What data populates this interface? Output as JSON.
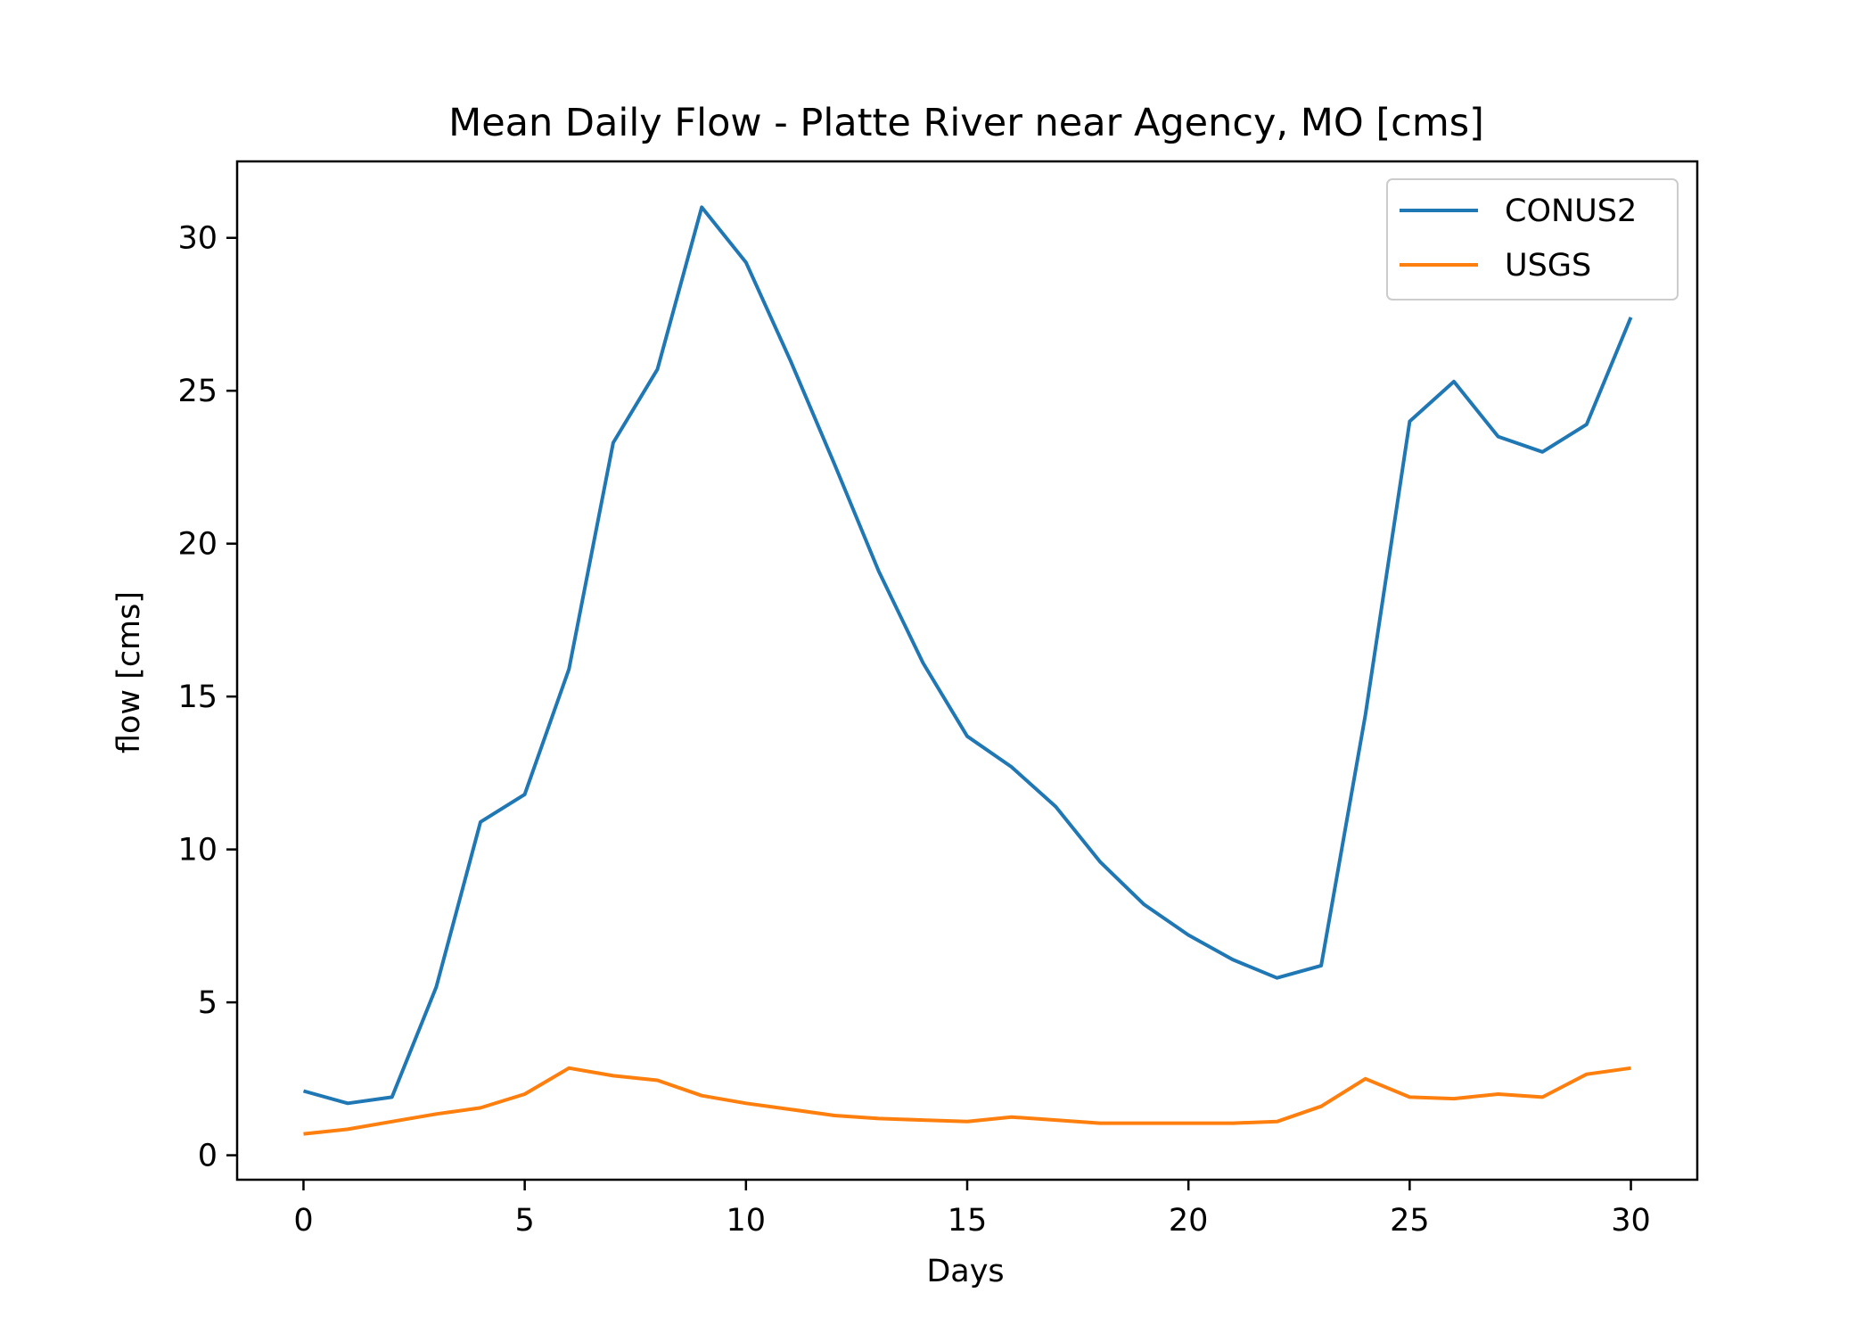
{
  "chart_data": {
    "type": "line",
    "title": "Mean Daily Flow - Platte River near Agency, MO [cms]",
    "xlabel": "Days",
    "ylabel": "flow [cms]",
    "xlim": [
      -1.5,
      31.5
    ],
    "ylim": [
      -0.8,
      32.5
    ],
    "x_ticks": [
      0,
      5,
      10,
      15,
      20,
      25,
      30
    ],
    "y_ticks": [
      0,
      5,
      10,
      15,
      20,
      25,
      30
    ],
    "grid": false,
    "legend_position": "top-right",
    "x": [
      0,
      1,
      2,
      3,
      4,
      5,
      6,
      7,
      8,
      9,
      10,
      11,
      12,
      13,
      14,
      15,
      16,
      17,
      18,
      19,
      20,
      21,
      22,
      23,
      24,
      25,
      26,
      27,
      28,
      29,
      30
    ],
    "series": [
      {
        "name": "CONUS2",
        "color": "#1f77b4",
        "values": [
          2.1,
          1.7,
          1.9,
          5.5,
          10.9,
          11.8,
          15.9,
          23.3,
          25.7,
          31.0,
          29.2,
          26.0,
          22.6,
          19.1,
          16.1,
          13.7,
          12.7,
          11.4,
          9.6,
          8.2,
          7.2,
          6.4,
          5.8,
          6.2,
          14.4,
          24.0,
          25.3,
          23.5,
          23.0,
          23.9,
          27.4
        ]
      },
      {
        "name": "USGS",
        "color": "#ff7f0e",
        "values": [
          0.7,
          0.85,
          1.1,
          1.35,
          1.55,
          2.0,
          2.85,
          2.6,
          2.45,
          1.95,
          1.7,
          1.5,
          1.3,
          1.2,
          1.15,
          1.1,
          1.25,
          1.15,
          1.05,
          1.05,
          1.05,
          1.05,
          1.1,
          1.6,
          2.5,
          1.9,
          1.85,
          2.0,
          1.9,
          2.65,
          2.85
        ]
      }
    ]
  }
}
